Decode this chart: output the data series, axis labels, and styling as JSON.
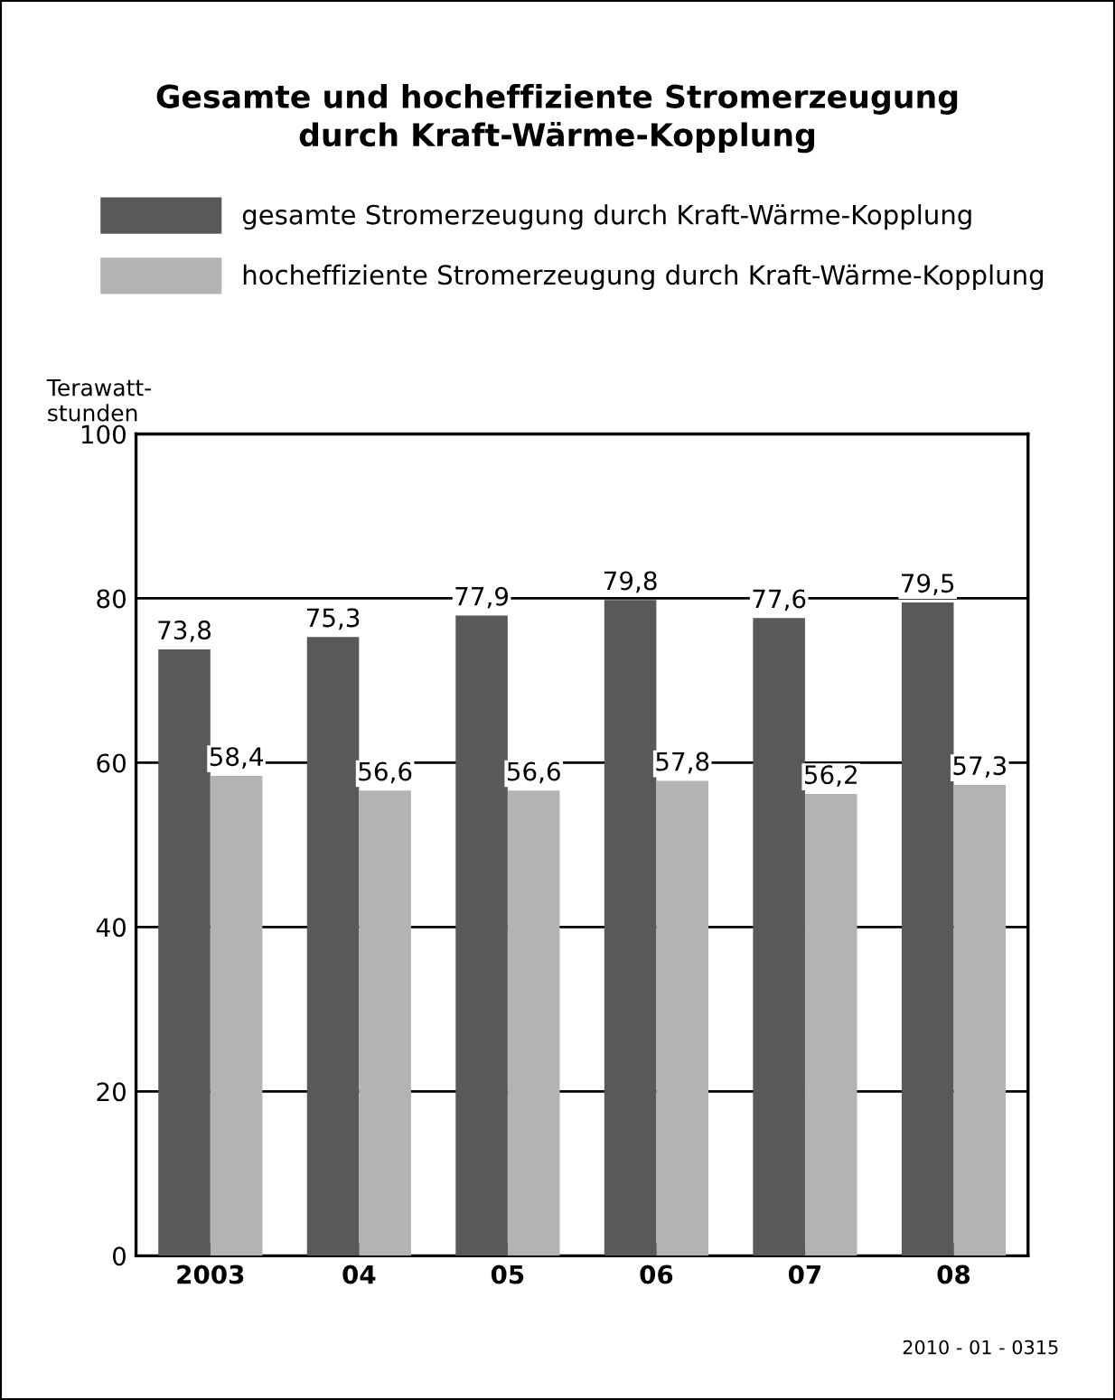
{
  "chart_data": {
    "type": "bar",
    "title": "Gesamte und hocheffiziente Stromerzeugung\ndurch Kraft-Wärme-Kopplung",
    "ylabel": "Terawatt-\nstunden",
    "categories": [
      "2003",
      "04",
      "05",
      "06",
      "07",
      "08"
    ],
    "series": [
      {
        "name": "gesamte Stromerzeugung durch Kraft-Wärme-Kopplung",
        "color": "#595959",
        "values": [
          73.8,
          75.3,
          77.9,
          79.8,
          77.6,
          79.5
        ],
        "value_labels": [
          "73,8",
          "75,3",
          "77,9",
          "79,8",
          "77,6",
          "79,5"
        ]
      },
      {
        "name": "hocheffiziente Stromerzeugung durch Kraft-Wärme-Kopplung",
        "color": "#b3b3b3",
        "values": [
          58.4,
          56.6,
          56.6,
          57.8,
          56.2,
          57.3
        ],
        "value_labels": [
          "58,4",
          "56,6",
          "56,6",
          "57,8",
          "56,2",
          "57,3"
        ]
      }
    ],
    "ylim": [
      0,
      100
    ],
    "yticks": [
      0,
      20,
      40,
      60,
      80,
      100
    ],
    "grid": "y",
    "legend": "top",
    "annotations": [
      "2010 - 01 - 0315"
    ]
  }
}
